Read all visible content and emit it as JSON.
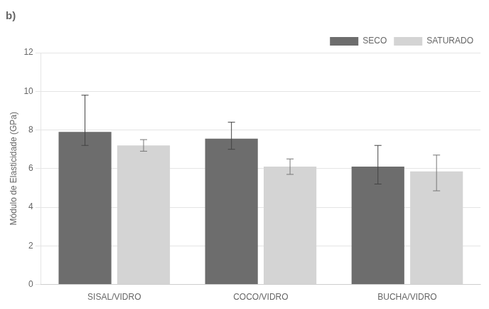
{
  "chart_data": {
    "type": "bar",
    "title": "b)",
    "ylabel": "Módulo de Elasticidade (GPa)",
    "categories": [
      "SISAL/VIDRO",
      "COCO/VIDRO",
      "BUCHA/VIDRO"
    ],
    "series": [
      {
        "name": "SECO",
        "color": "#6d6d6d",
        "values": [
          7.9,
          7.55,
          6.1
        ],
        "error_upper": [
          1.9,
          0.85,
          1.1
        ],
        "error_lower": [
          0.7,
          0.55,
          0.9
        ]
      },
      {
        "name": "SATURADO",
        "color": "#d4d4d4",
        "values": [
          7.2,
          6.1,
          5.85
        ],
        "error_upper": [
          0.3,
          0.4,
          0.85
        ],
        "error_lower": [
          0.3,
          0.4,
          1.0
        ]
      }
    ],
    "ylim": [
      0,
      12
    ],
    "yticks": [
      0,
      2,
      4,
      6,
      8,
      10,
      12
    ],
    "grid": true,
    "legend": "upper right"
  }
}
